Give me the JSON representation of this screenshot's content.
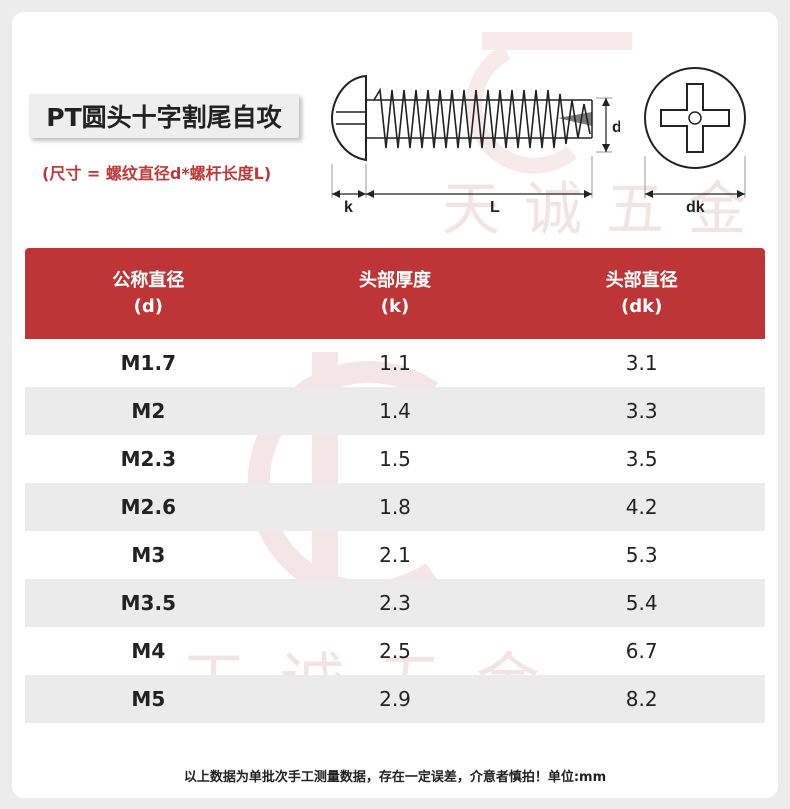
{
  "title": "PT圆头十字割尾自攻",
  "subtitle": "(尺寸 = 螺纹直径d*螺杆长度L)",
  "diagram": {
    "label_d": "d",
    "label_k": "k",
    "label_L": "L",
    "label_dk": "dk"
  },
  "watermark": "天诚五金",
  "table": {
    "headers": [
      {
        "line1": "公称直径",
        "line2": "(d)"
      },
      {
        "line1": "头部厚度",
        "line2": "(k)"
      },
      {
        "line1": "头部直径",
        "line2": "(dk)"
      }
    ],
    "rows": [
      [
        "M1.7",
        "1.1",
        "3.1"
      ],
      [
        "M2",
        "1.4",
        "3.3"
      ],
      [
        "M2.3",
        "1.5",
        "3.5"
      ],
      [
        "M2.6",
        "1.8",
        "4.2"
      ],
      [
        "M3",
        "2.1",
        "5.3"
      ],
      [
        "M3.5",
        "2.3",
        "5.4"
      ],
      [
        "M4",
        "2.5",
        "6.7"
      ],
      [
        "M5",
        "2.9",
        "8.2"
      ]
    ]
  },
  "footnote": "以上数据为单批次手工测量数据，存在一定误差，介意者慎拍！单位:mm",
  "colors": {
    "header_bg": "#bd3536",
    "accent_red": "#c0393a",
    "alt_row": "#ebebeb"
  }
}
